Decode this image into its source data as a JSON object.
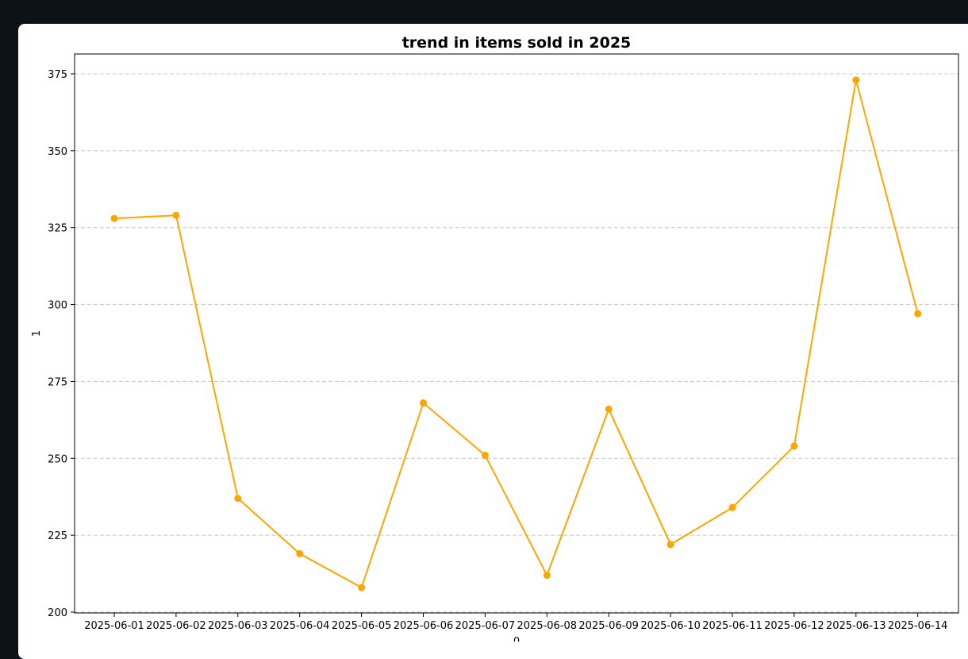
{
  "chart_data": {
    "type": "line",
    "title": "trend in items sold in 2025",
    "xlabel": "0",
    "ylabel": "1",
    "x": [
      "2025-06-01",
      "2025-06-02",
      "2025-06-03",
      "2025-06-04",
      "2025-06-05",
      "2025-06-06",
      "2025-06-07",
      "2025-06-08",
      "2025-06-09",
      "2025-06-10",
      "2025-06-11",
      "2025-06-12",
      "2025-06-13",
      "2025-06-14"
    ],
    "series": [
      {
        "values": [
          328,
          329,
          237,
          219,
          208,
          268,
          251,
          212,
          266,
          222,
          234,
          254,
          373,
          297
        ]
      }
    ],
    "ylim": [
      200,
      375
    ],
    "yticks": [
      "200",
      "225",
      "250",
      "275",
      "300",
      "325",
      "350",
      "375"
    ],
    "grid": "y-dashed",
    "line_color": "#ffa500",
    "legend": "none"
  }
}
